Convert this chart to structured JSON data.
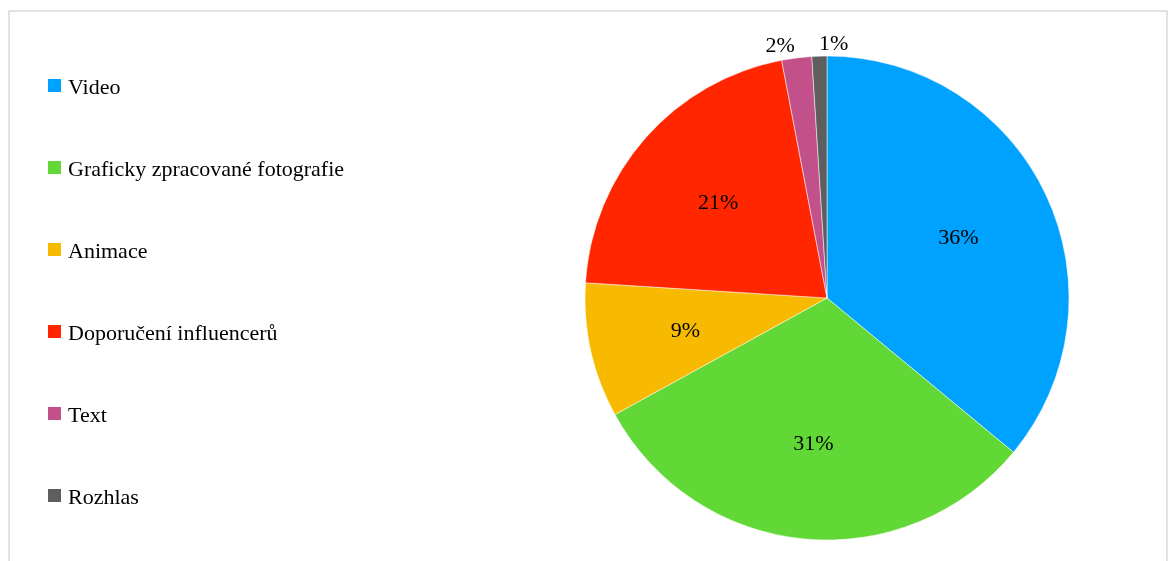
{
  "chart_data": {
    "type": "pie",
    "categories": [
      "Video",
      "Graficky zpracované fotografie",
      "Animace",
      "Doporučení influencerů",
      "Text",
      "Rozhlas"
    ],
    "values": [
      36,
      31,
      9,
      21,
      2,
      1
    ],
    "colors": [
      "#00a2ff",
      "#61d836",
      "#f8ba00",
      "#ff2600",
      "#c2508b",
      "#5e5e5e"
    ],
    "value_labels": [
      "36%",
      "31%",
      "9%",
      "21%",
      "2%",
      "1%"
    ],
    "legend": "left"
  }
}
